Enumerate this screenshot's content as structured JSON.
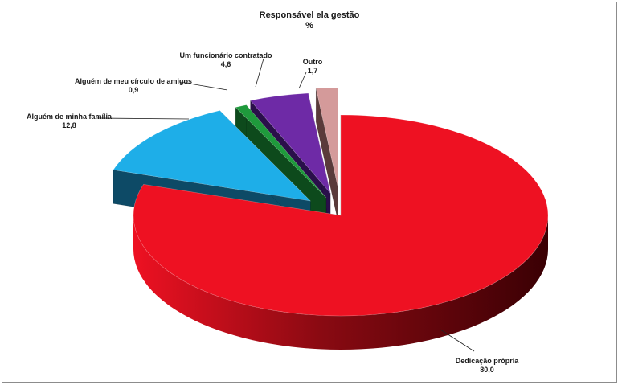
{
  "chart_data": {
    "type": "pie",
    "title": "Responsável ela gestão",
    "subtitle": "%",
    "categories": [
      "Dedicação própria",
      "Alguém de minha família",
      "Alguém de meu círculo de amigos",
      "Um funcionário contratado",
      "Outro"
    ],
    "values": [
      80.0,
      12.8,
      0.9,
      4.6,
      1.7
    ],
    "value_labels": [
      "80,0",
      "12,8",
      "0,9",
      "4,6",
      "1,7"
    ],
    "colors": [
      "#ee1122",
      "#1eaee8",
      "#1f9a3c",
      "#6e2aa6",
      "#d49a9a"
    ],
    "side_colors": [
      "#8a0a12",
      "#0d4a66",
      "#0d4a1c",
      "#2a0f4a",
      "#5a3a3a"
    ],
    "style": "3d-exploded",
    "legend": "none"
  }
}
